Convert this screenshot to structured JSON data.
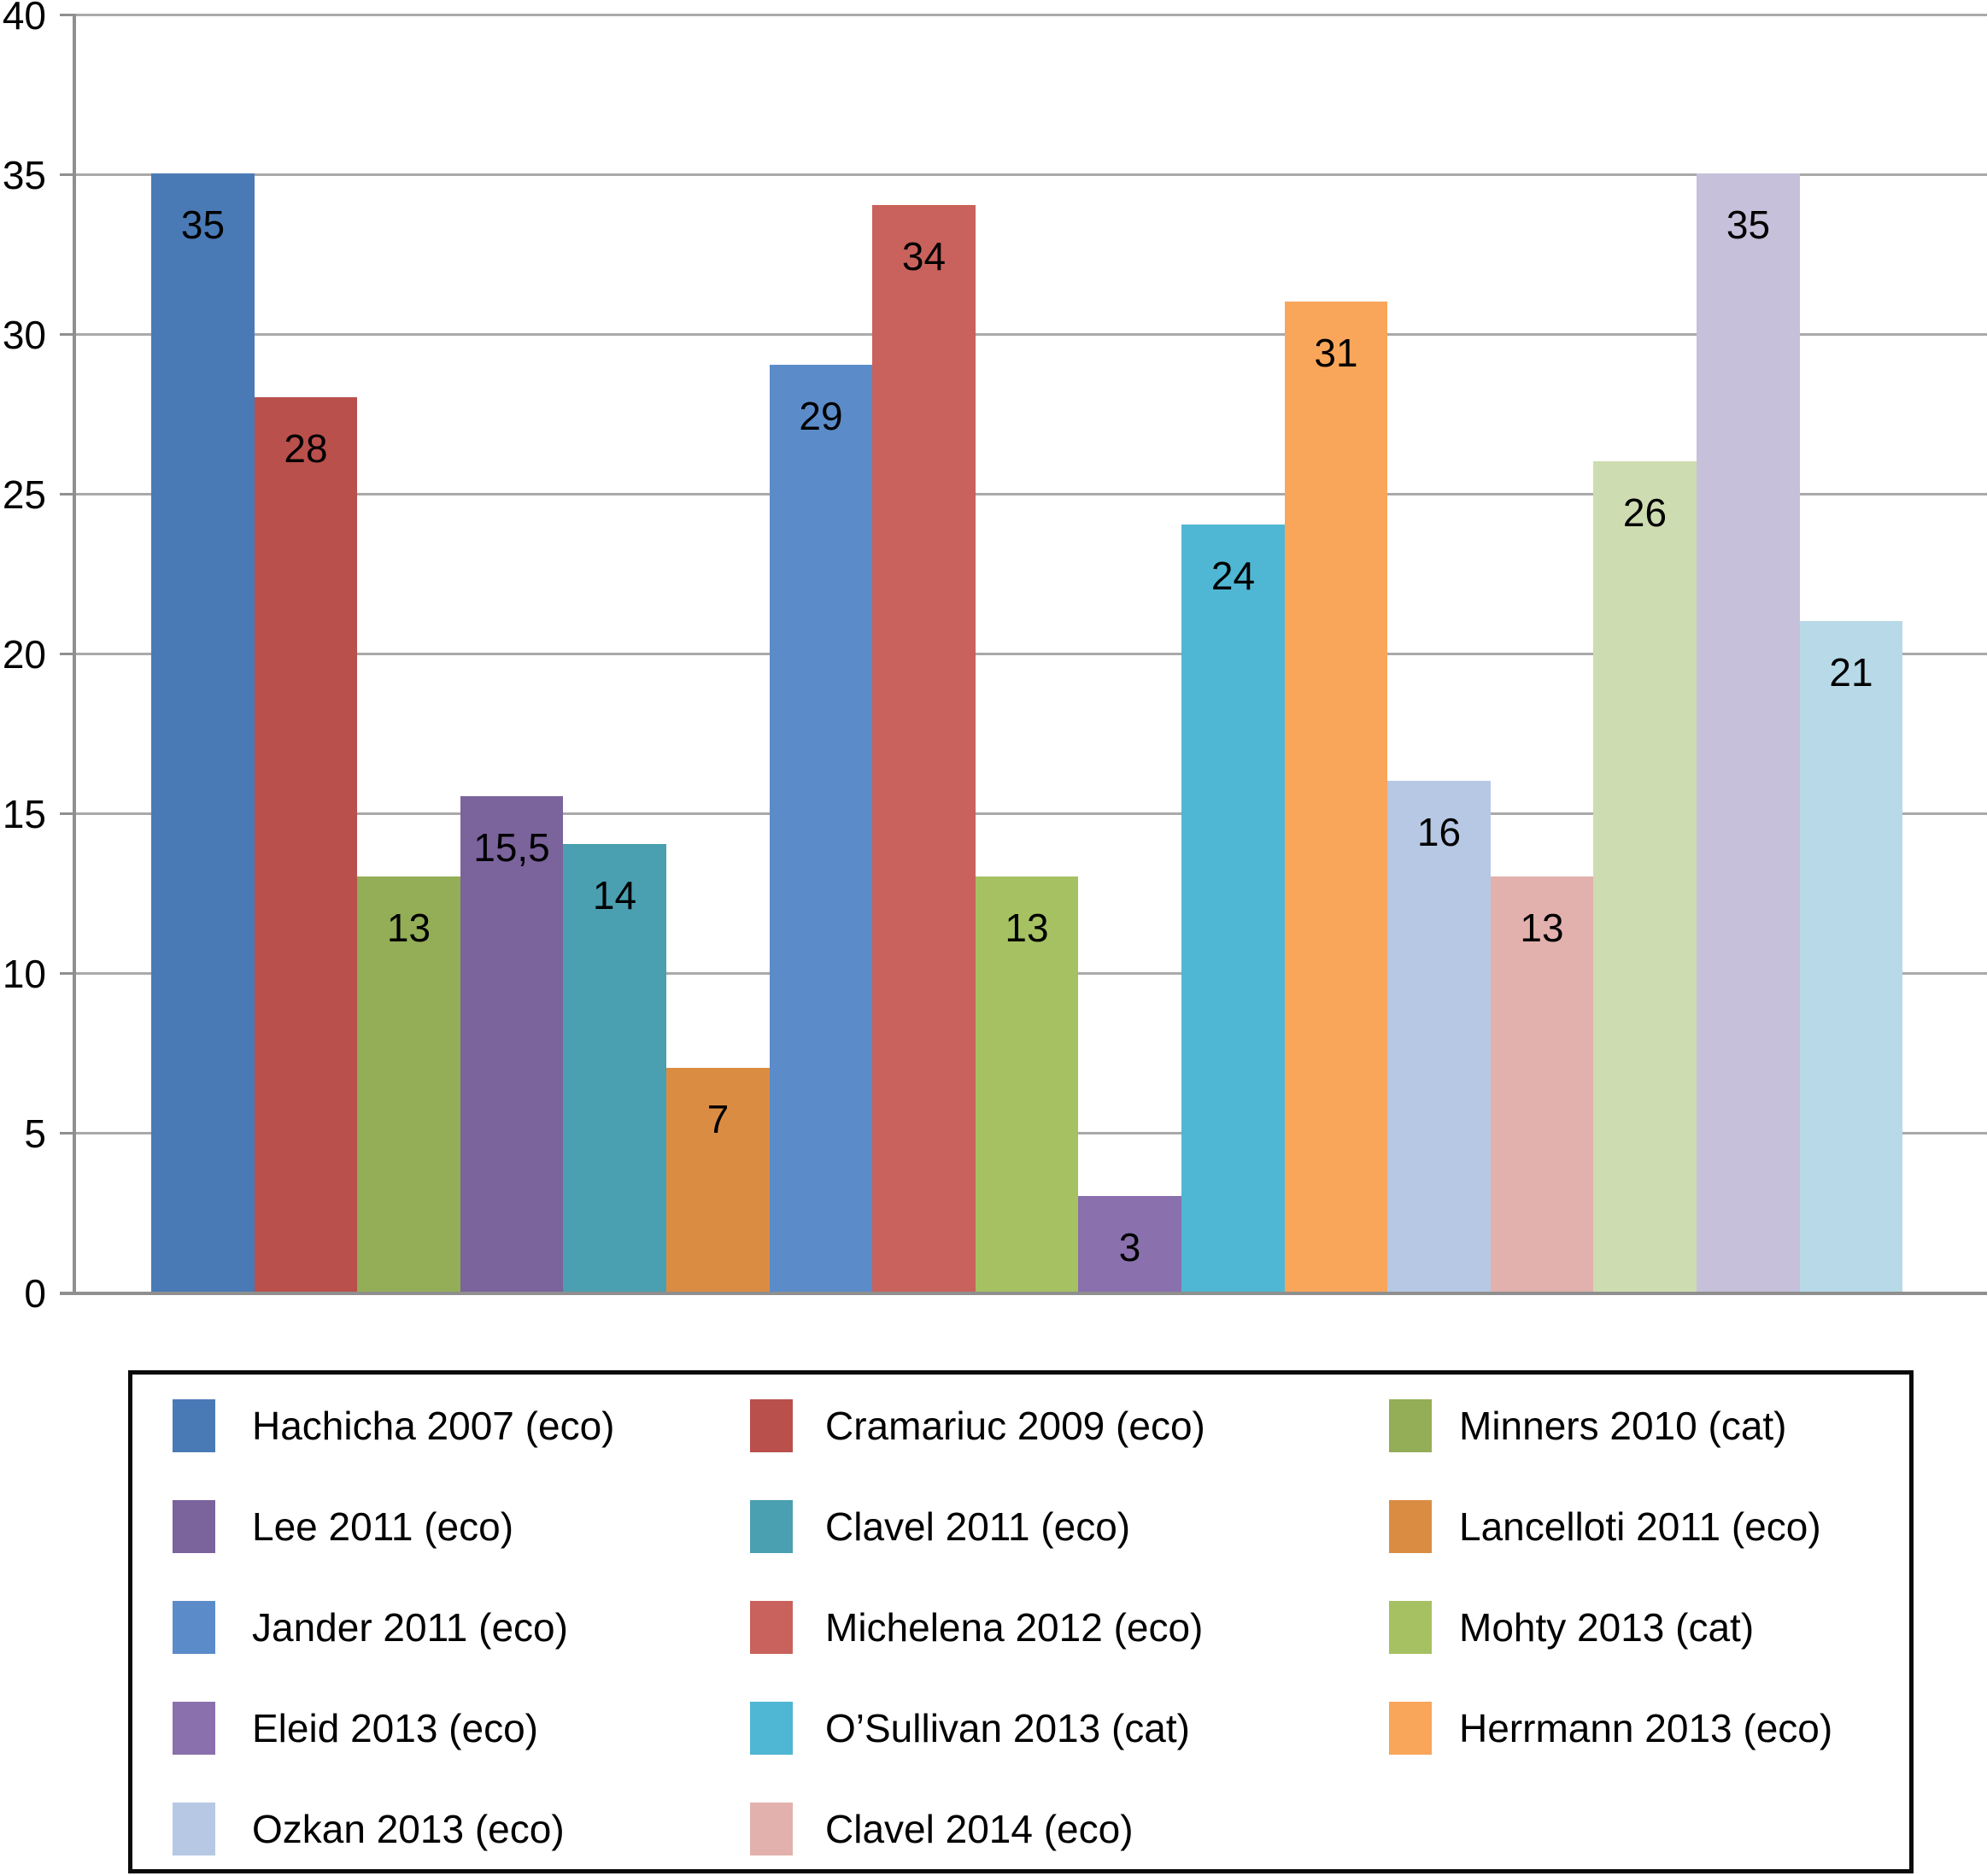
{
  "chart_data": {
    "type": "bar",
    "title": "",
    "xlabel": "",
    "ylabel": "",
    "ylim": [
      0,
      40
    ],
    "ytick_interval": 5,
    "ytick_labels_top_down": [
      "40",
      "35",
      "30",
      "25",
      "20",
      "15",
      "10",
      "5",
      "0"
    ],
    "grid": true,
    "legend_position": "bottom-box",
    "series": [
      {
        "label": "Hachicha 2007 (eco)",
        "value": 35,
        "display": "35",
        "color": "#4A7AB5"
      },
      {
        "label": "Cramariuc 2009 (eco)",
        "value": 28,
        "display": "28",
        "color": "#B9504C"
      },
      {
        "label": "Minners 2010 (cat)",
        "value": 13,
        "display": "13",
        "color": "#94AD57"
      },
      {
        "label": "Lee 2011 (eco)",
        "value": 15.5,
        "display": "15,5",
        "color": "#7B639C"
      },
      {
        "label": "Clavel 2011 (eco)",
        "value": 14,
        "display": "14",
        "color": "#4A9FB0"
      },
      {
        "label": "Lancelloti 2011 (eco)",
        "value": 7,
        "display": "7",
        "color": "#DB8C43"
      },
      {
        "label": "Jander 2011 (eco)",
        "value": 29,
        "display": "29",
        "color": "#5B8CC9"
      },
      {
        "label": "Michelena 2012 (eco)",
        "value": 34,
        "display": "34",
        "color": "#C9625C"
      },
      {
        "label": "Mohty 2013 (cat)",
        "value": 13,
        "display": "13",
        "color": "#A6C162"
      },
      {
        "label": "Eleid 2013 (eco)",
        "value": 3,
        "display": "3",
        "color": "#8A70AD"
      },
      {
        "label": "O’Sullivan 2013 (cat)",
        "value": 24,
        "display": "24",
        "color": "#4FB7D3"
      },
      {
        "label": "Herrmann 2013 (eco)",
        "value": 31,
        "display": "31",
        "color": "#F9A65A"
      },
      {
        "label": "Ozkan 2013 (eco)",
        "value": 16,
        "display": "16",
        "color": "#B7C8E5"
      },
      {
        "label": "Clavel 2014 (eco)",
        "value": 13,
        "display": "13",
        "color": "#E2B1AD"
      },
      {
        "label": "",
        "value": 26,
        "display": "26",
        "color": "#CEDCB1"
      },
      {
        "label": "",
        "value": 35,
        "display": "35",
        "color": "#C6C0DA"
      },
      {
        "label": "",
        "value": 21,
        "display": "21",
        "color": "#B7D9E8"
      }
    ],
    "legend_entries": [
      {
        "label": "Hachicha 2007 (eco)",
        "color": "#4A7AB5"
      },
      {
        "label": "Cramariuc 2009 (eco)",
        "color": "#B9504C"
      },
      {
        "label": "Minners 2010 (cat)",
        "color": "#94AD57"
      },
      {
        "label": "Lee 2011 (eco)",
        "color": "#7B639C"
      },
      {
        "label": "Clavel 2011 (eco)",
        "color": "#4A9FB0"
      },
      {
        "label": "Lancelloti 2011 (eco)",
        "color": "#DB8C43"
      },
      {
        "label": "Jander 2011 (eco)",
        "color": "#5B8CC9"
      },
      {
        "label": "Michelena 2012 (eco)",
        "color": "#C9625C"
      },
      {
        "label": "Mohty 2013 (cat)",
        "color": "#A6C162"
      },
      {
        "label": "Eleid 2013 (eco)",
        "color": "#8A70AD"
      },
      {
        "label": "O’Sullivan 2013 (cat)",
        "color": "#4FB7D3"
      },
      {
        "label": "Herrmann 2013 (eco)",
        "color": "#F9A65A"
      },
      {
        "label": "Ozkan 2013 (eco)",
        "color": "#B7C8E5"
      },
      {
        "label": "Clavel 2014 (eco)",
        "color": "#E2B1AD"
      }
    ]
  }
}
